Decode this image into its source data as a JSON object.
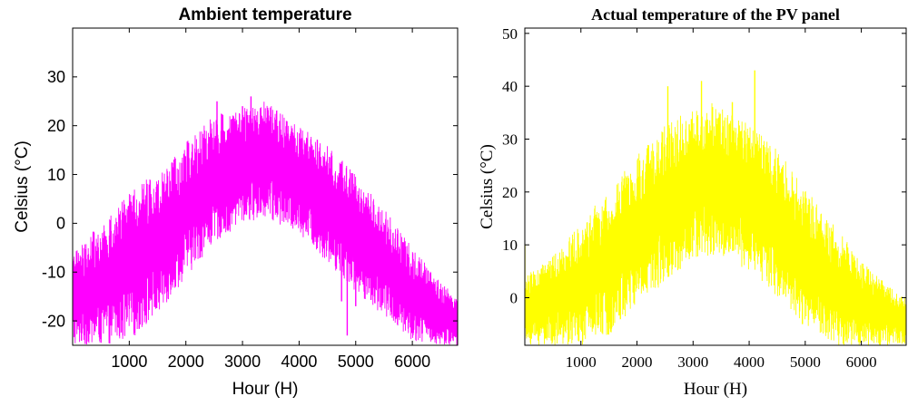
{
  "colors": {
    "left_trace": "#ff00ff",
    "right_trace": "#ffff00",
    "axes": "#000000",
    "background": "#ffffff"
  },
  "chart_data": [
    {
      "type": "line",
      "title": "Ambient temperature",
      "xlabel": "Hour (H)",
      "ylabel": "Celsius (°C)",
      "xlim": [
        0,
        6800
      ],
      "ylim": [
        -25,
        40
      ],
      "xticks": [
        1000,
        2000,
        3000,
        4000,
        5000,
        6000
      ],
      "yticks": [
        -20,
        -10,
        0,
        10,
        20,
        30
      ],
      "xtick_labels": [
        "1000",
        "2000",
        "3000",
        "4000",
        "5000",
        "6000"
      ],
      "ytick_labels": [
        "-20",
        "-10",
        "0",
        "10",
        "20",
        "30"
      ],
      "grid": false,
      "legend": "none",
      "series": [
        {
          "color": "#ff00ff",
          "envelope_x": [
            0,
            500,
            1000,
            1500,
            2000,
            2500,
            3000,
            3400,
            4000,
            4500,
            5000,
            5500,
            6000,
            6500,
            6800
          ],
          "envelope_low": [
            -25,
            -25,
            -24,
            -19,
            -11,
            -4,
            0,
            1,
            -2,
            -8,
            -14,
            -19,
            -24,
            -25,
            -25
          ],
          "envelope_high": [
            -6,
            0,
            6,
            11,
            17,
            22,
            24,
            25,
            20,
            16,
            10,
            3,
            -5,
            -12,
            -15
          ],
          "spikes": [
            {
              "x": 2550,
              "y": 25
            },
            {
              "x": 3150,
              "y": 26
            },
            {
              "x": 3000,
              "y": 24
            },
            {
              "x": 4750,
              "y": -16
            },
            {
              "x": 5000,
              "y": -17
            },
            {
              "x": 4850,
              "y": -23
            }
          ]
        }
      ]
    },
    {
      "type": "line",
      "title": "Actual temperature of the PV panel",
      "xlabel": "Hour (H)",
      "ylabel": "Celsius (°C)",
      "xlim": [
        0,
        6800
      ],
      "ylim": [
        -9,
        51
      ],
      "xticks": [
        1000,
        2000,
        3000,
        4000,
        5000,
        6000
      ],
      "yticks": [
        0,
        10,
        20,
        30,
        40,
        50
      ],
      "xtick_labels": [
        "1000",
        "2000",
        "3000",
        "4000",
        "5000",
        "6000"
      ],
      "ytick_labels": [
        "0",
        "10",
        "20",
        "30",
        "40",
        "50"
      ],
      "grid": false,
      "legend": "none",
      "series": [
        {
          "color": "#ffff00",
          "envelope_x": [
            0,
            500,
            1000,
            1500,
            2000,
            2500,
            3000,
            3400,
            4000,
            4500,
            5000,
            5500,
            6000,
            6500,
            6800
          ],
          "envelope_low": [
            -9,
            -9,
            -9,
            -7,
            -2,
            3,
            7,
            8,
            5,
            0,
            -5,
            -9,
            -9,
            -9,
            -9
          ],
          "envelope_high": [
            4,
            8,
            14,
            21,
            27,
            33,
            36,
            37,
            33,
            28,
            21,
            14,
            7,
            2,
            0
          ],
          "spikes": [
            {
              "x": 0,
              "y": 10
            },
            {
              "x": 2550,
              "y": 40
            },
            {
              "x": 3150,
              "y": 41
            },
            {
              "x": 3700,
              "y": 37
            },
            {
              "x": 4100,
              "y": 43
            },
            {
              "x": 1300,
              "y": 11
            },
            {
              "x": 4950,
              "y": -5
            }
          ]
        }
      ]
    }
  ]
}
